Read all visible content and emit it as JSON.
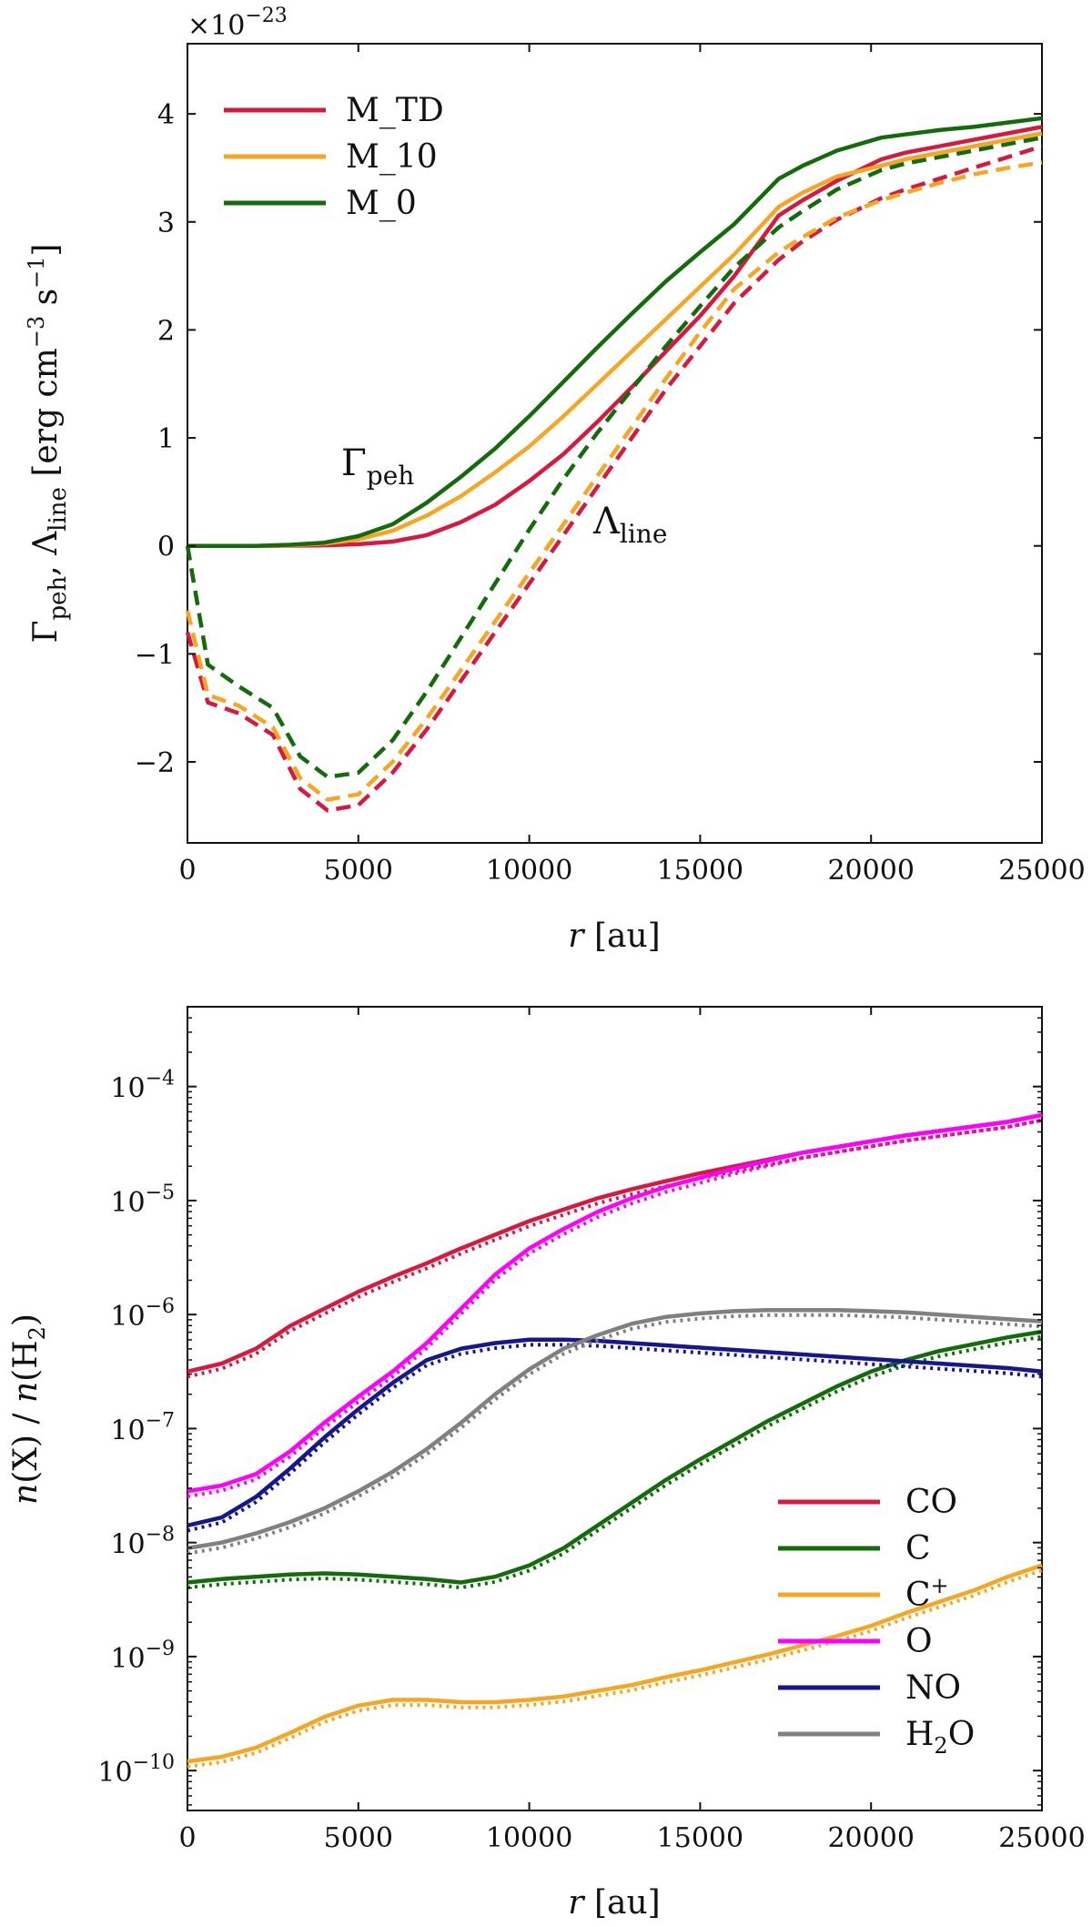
{
  "chart_data": [
    {
      "type": "line",
      "title": "",
      "xlabel": "r [au]",
      "ylabel": "Γpeh, Λline [erg cm⁻³ s⁻¹]",
      "xlabel_parts": {
        "var": "r",
        "unit": " [au]"
      },
      "ylabel_parts": {
        "g": "Γ",
        "g_sub": "peh",
        "sep": ", ",
        "l": "Λ",
        "l_sub": "line",
        "unit_open": " [erg cm",
        "unit_exp1": "−3",
        "unit_mid": " s",
        "unit_exp2": "−1",
        "unit_close": "]"
      },
      "offset_text": {
        "base": "×10",
        "exp": "−23"
      },
      "xlim": [
        0,
        25000
      ],
      "ylim": [
        -2.75,
        4.65
      ],
      "x_ticks": [
        0,
        5000,
        10000,
        15000,
        20000,
        25000
      ],
      "x_tick_labels": [
        "0",
        "5000",
        "10000",
        "15000",
        "20000",
        "25000"
      ],
      "y_ticks": [
        -2,
        -1,
        0,
        1,
        2,
        3,
        4
      ],
      "y_tick_labels": [
        "−2",
        "−1",
        "0",
        "1",
        "2",
        "3",
        "4"
      ],
      "legend": {
        "position": "top-left",
        "entries": [
          "M_TD",
          "M_10",
          "M_0"
        ]
      },
      "annotations": [
        {
          "text": "Γ",
          "sub": "peh",
          "x": 4800,
          "y": 0.65
        },
        {
          "text": "Λ",
          "sub": "line",
          "x": 12200,
          "y": 0.0
        }
      ],
      "series": [
        {
          "name": "M_TD",
          "kind": "Γpeh",
          "style": "solid",
          "color": "#d7193f",
          "x": [
            0,
            1000,
            2000,
            3000,
            4000,
            5000,
            6000,
            7000,
            8000,
            9000,
            10000,
            11000,
            12000,
            13000,
            14000,
            15000,
            16000,
            17300,
            18000,
            19000,
            20300,
            21000,
            22000,
            23000,
            24000,
            25000
          ],
          "y": [
            0,
            0,
            0,
            0.002,
            0.005,
            0.015,
            0.04,
            0.1,
            0.22,
            0.38,
            0.6,
            0.85,
            1.15,
            1.47,
            1.8,
            2.13,
            2.5,
            3.06,
            3.2,
            3.38,
            3.58,
            3.64,
            3.7,
            3.76,
            3.82,
            3.88
          ]
        },
        {
          "name": "M_10",
          "kind": "Γpeh",
          "style": "solid",
          "color": "#f6a623",
          "x": [
            0,
            1000,
            2000,
            3000,
            4000,
            5000,
            6000,
            7000,
            8000,
            9000,
            10000,
            11000,
            12000,
            13000,
            14000,
            15000,
            16000,
            17300,
            18000,
            19000,
            20300,
            21000,
            22000,
            23000,
            24000,
            25000
          ],
          "y": [
            0,
            0,
            0,
            0.005,
            0.02,
            0.06,
            0.14,
            0.28,
            0.46,
            0.68,
            0.92,
            1.2,
            1.5,
            1.8,
            2.1,
            2.4,
            2.7,
            3.14,
            3.27,
            3.42,
            3.52,
            3.58,
            3.64,
            3.7,
            3.76,
            3.82
          ]
        },
        {
          "name": "M_0",
          "kind": "Γpeh",
          "style": "solid",
          "color": "#136b0b",
          "x": [
            0,
            1000,
            2000,
            3000,
            4000,
            5000,
            6000,
            7000,
            8000,
            9000,
            10000,
            11000,
            12000,
            13000,
            14000,
            15000,
            16000,
            17300,
            18000,
            19000,
            20300,
            21000,
            22000,
            23000,
            24000,
            25000
          ],
          "y": [
            0,
            0,
            0,
            0.01,
            0.03,
            0.09,
            0.2,
            0.4,
            0.64,
            0.9,
            1.2,
            1.52,
            1.84,
            2.15,
            2.45,
            2.72,
            2.98,
            3.4,
            3.52,
            3.66,
            3.78,
            3.81,
            3.85,
            3.88,
            3.92,
            3.96
          ]
        },
        {
          "name": "M_TD",
          "kind": "Λline",
          "style": "dashed",
          "color": "#d7193f",
          "x": [
            0,
            600,
            1500,
            2500,
            3300,
            4100,
            5000,
            6000,
            7000,
            8000,
            9000,
            10000,
            11000,
            12000,
            13000,
            14000,
            15000,
            16000,
            17300,
            18000,
            19000,
            20300,
            21000,
            22000,
            23000,
            24000,
            25000
          ],
          "y": [
            -0.8,
            -1.45,
            -1.55,
            -1.75,
            -2.25,
            -2.45,
            -2.4,
            -2.1,
            -1.7,
            -1.25,
            -0.8,
            -0.35,
            0.1,
            0.55,
            1.0,
            1.45,
            1.85,
            2.25,
            2.65,
            2.82,
            3.02,
            3.22,
            3.3,
            3.4,
            3.5,
            3.6,
            3.7
          ]
        },
        {
          "name": "M_10",
          "kind": "Λline",
          "style": "dashed",
          "color": "#f6a623",
          "x": [
            0,
            600,
            1500,
            2500,
            3300,
            4100,
            5000,
            6000,
            7000,
            8000,
            9000,
            10000,
            11000,
            12000,
            13000,
            14000,
            15000,
            16000,
            17300,
            18000,
            19000,
            20300,
            21000,
            22000,
            23000,
            24000,
            25000
          ],
          "y": [
            -0.6,
            -1.38,
            -1.48,
            -1.68,
            -2.15,
            -2.35,
            -2.3,
            -2.0,
            -1.6,
            -1.15,
            -0.7,
            -0.25,
            0.2,
            0.65,
            1.1,
            1.55,
            1.98,
            2.38,
            2.72,
            2.86,
            3.04,
            3.2,
            3.27,
            3.36,
            3.44,
            3.5,
            3.55
          ]
        },
        {
          "name": "M_0",
          "kind": "Λline",
          "style": "dashed",
          "color": "#136b0b",
          "x": [
            0,
            600,
            1500,
            2500,
            3300,
            4100,
            5000,
            6000,
            7000,
            8000,
            9000,
            10000,
            11000,
            12000,
            13000,
            14000,
            15000,
            16000,
            17300,
            18000,
            19000,
            20300,
            21000,
            22000,
            23000,
            24000,
            25000
          ],
          "y": [
            0,
            -1.1,
            -1.3,
            -1.5,
            -1.95,
            -2.14,
            -2.1,
            -1.8,
            -1.35,
            -0.85,
            -0.35,
            0.15,
            0.62,
            1.05,
            1.45,
            1.85,
            2.22,
            2.58,
            2.95,
            3.1,
            3.3,
            3.48,
            3.54,
            3.6,
            3.66,
            3.72,
            3.78
          ]
        }
      ]
    },
    {
      "type": "line",
      "yscale": "log",
      "title": "",
      "xlabel": "r [au]",
      "ylabel": "n(X)/n(H₂)",
      "xlabel_parts": {
        "var": "r",
        "unit": " [au]"
      },
      "ylabel_parts": {
        "n1": "n",
        "x": "(X) / ",
        "n2": "n",
        "h": "(H",
        "h_sub": "2",
        "close": ")"
      },
      "xlim": [
        0,
        25000
      ],
      "ylim_log10": [
        -10.35,
        -3.3
      ],
      "x_ticks": [
        0,
        5000,
        10000,
        15000,
        20000,
        25000
      ],
      "x_tick_labels": [
        "0",
        "5000",
        "10000",
        "15000",
        "20000",
        "25000"
      ],
      "y_ticks_log10": [
        -10,
        -9,
        -8,
        -7,
        -6,
        -5,
        -4
      ],
      "y_tick_base": "10",
      "y_tick_exps": [
        "−10",
        "−9",
        "−8",
        "−7",
        "−6",
        "−5",
        "−4"
      ],
      "legend": {
        "position": "bottom-right",
        "entries": [
          "CO",
          "C",
          "C⁺",
          "O",
          "NO",
          "H₂O"
        ]
      },
      "legend_parts": [
        {
          "main": "CO",
          "sup": "",
          "sub": "",
          "tail": ""
        },
        {
          "main": "C",
          "sup": "",
          "sub": "",
          "tail": ""
        },
        {
          "main": "C",
          "sup": "+",
          "sub": "",
          "tail": ""
        },
        {
          "main": "O",
          "sup": "",
          "sub": "",
          "tail": ""
        },
        {
          "main": "NO",
          "sup": "",
          "sub": "",
          "tail": ""
        },
        {
          "main": "H",
          "sup": "",
          "sub": "2",
          "tail": "O"
        }
      ],
      "series": [
        {
          "name": "CO",
          "color": "#d7193f",
          "x": [
            0,
            1000,
            2000,
            3000,
            4000,
            5000,
            6000,
            7000,
            8000,
            9000,
            10000,
            11000,
            12000,
            13000,
            14000,
            15000,
            16000,
            17000,
            18000,
            19000,
            20000,
            21000,
            22000,
            23000,
            24000,
            25000
          ],
          "log10y": [
            -6.5,
            -6.43,
            -6.3,
            -6.1,
            -5.95,
            -5.8,
            -5.67,
            -5.55,
            -5.42,
            -5.3,
            -5.18,
            -5.08,
            -4.98,
            -4.9,
            -4.83,
            -4.76,
            -4.7,
            -4.64,
            -4.58,
            -4.53,
            -4.48,
            -4.43,
            -4.39,
            -4.35,
            -4.31,
            -4.25
          ]
        },
        {
          "name": "C",
          "color": "#136b0b",
          "x": [
            0,
            1000,
            2000,
            3000,
            4000,
            5000,
            6000,
            7000,
            8000,
            9000,
            10000,
            11000,
            12000,
            13000,
            14000,
            15000,
            16000,
            17000,
            18000,
            19000,
            20000,
            21000,
            22000,
            23000,
            24000,
            25000
          ],
          "log10y": [
            -8.35,
            -8.32,
            -8.3,
            -8.28,
            -8.27,
            -8.28,
            -8.3,
            -8.32,
            -8.35,
            -8.3,
            -8.2,
            -8.05,
            -7.85,
            -7.65,
            -7.45,
            -7.27,
            -7.1,
            -6.93,
            -6.78,
            -6.63,
            -6.5,
            -6.4,
            -6.32,
            -6.26,
            -6.2,
            -6.15
          ]
        },
        {
          "name": "C⁺",
          "color": "#f6a623",
          "x": [
            0,
            1000,
            2000,
            3000,
            4000,
            5000,
            6000,
            7000,
            8000,
            9000,
            10000,
            11000,
            12000,
            13000,
            14000,
            15000,
            16000,
            17000,
            18000,
            19000,
            20000,
            21000,
            22000,
            23000,
            24000,
            25000
          ],
          "log10y": [
            -9.92,
            -9.88,
            -9.8,
            -9.67,
            -9.53,
            -9.43,
            -9.38,
            -9.38,
            -9.4,
            -9.4,
            -9.38,
            -9.35,
            -9.3,
            -9.25,
            -9.18,
            -9.12,
            -9.05,
            -8.98,
            -8.9,
            -8.82,
            -8.73,
            -8.62,
            -8.52,
            -8.42,
            -8.3,
            -8.2
          ]
        },
        {
          "name": "O",
          "color": "#ff00ff",
          "x": [
            0,
            1000,
            2000,
            3000,
            4000,
            5000,
            6000,
            7000,
            8000,
            9000,
            10000,
            11000,
            12000,
            13000,
            14000,
            15000,
            16000,
            17000,
            18000,
            19000,
            20000,
            21000,
            22000,
            23000,
            24000,
            25000
          ],
          "log10y": [
            -7.55,
            -7.5,
            -7.4,
            -7.2,
            -6.95,
            -6.72,
            -6.5,
            -6.25,
            -5.95,
            -5.65,
            -5.42,
            -5.25,
            -5.1,
            -4.98,
            -4.88,
            -4.8,
            -4.72,
            -4.65,
            -4.58,
            -4.53,
            -4.48,
            -4.43,
            -4.39,
            -4.35,
            -4.31,
            -4.25
          ]
        },
        {
          "name": "NO",
          "color": "#16178c",
          "x": [
            0,
            1000,
            2000,
            3000,
            4000,
            5000,
            6000,
            7000,
            8000,
            9000,
            10000,
            11000,
            12000,
            13000,
            14000,
            15000,
            16000,
            17000,
            18000,
            19000,
            20000,
            21000,
            22000,
            23000,
            24000,
            25000
          ],
          "log10y": [
            -7.85,
            -7.78,
            -7.6,
            -7.35,
            -7.08,
            -6.83,
            -6.6,
            -6.4,
            -6.3,
            -6.25,
            -6.22,
            -6.22,
            -6.23,
            -6.25,
            -6.27,
            -6.29,
            -6.31,
            -6.33,
            -6.35,
            -6.37,
            -6.39,
            -6.41,
            -6.43,
            -6.45,
            -6.47,
            -6.5
          ]
        },
        {
          "name": "H₂O",
          "color": "#808080",
          "x": [
            0,
            1000,
            2000,
            3000,
            4000,
            5000,
            6000,
            7000,
            8000,
            9000,
            10000,
            11000,
            12000,
            13000,
            14000,
            15000,
            16000,
            17000,
            18000,
            19000,
            20000,
            21000,
            22000,
            23000,
            24000,
            25000
          ],
          "log10y": [
            -8.05,
            -8.0,
            -7.92,
            -7.82,
            -7.7,
            -7.55,
            -7.38,
            -7.18,
            -6.95,
            -6.7,
            -6.48,
            -6.3,
            -6.18,
            -6.08,
            -6.02,
            -5.99,
            -5.97,
            -5.96,
            -5.96,
            -5.96,
            -5.97,
            -5.98,
            -6.0,
            -6.02,
            -6.04,
            -6.06
          ]
        }
      ]
    }
  ]
}
